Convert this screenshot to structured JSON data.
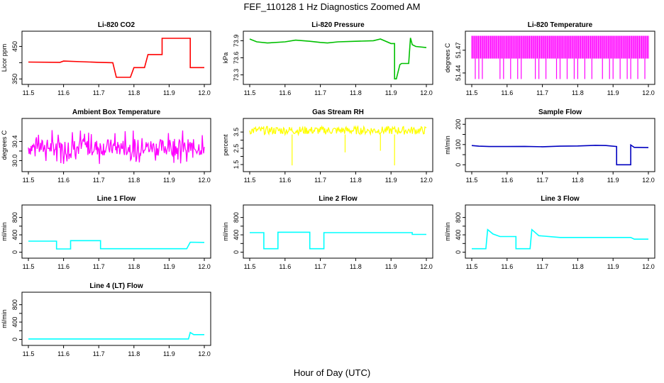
{
  "title": "FEF_110128  1 Hz Diagnostics Zoomed AM",
  "xlabel": "Hour of Day (UTC)",
  "chart_data": [
    {
      "type": "line",
      "title": "Li-820 CO2",
      "ylabel": "Licor ppm",
      "color": "#ff0000",
      "xlim": [
        11.5,
        12.0
      ],
      "ylim": [
        345,
        485
      ],
      "xticks": [
        "11.5",
        "11.6",
        "11.7",
        "11.8",
        "11.9",
        "12.0"
      ],
      "yticks": [
        {
          "v": 350,
          "label": "350"
        },
        {
          "v": 400,
          "label": ""
        },
        {
          "v": 450,
          "label": "450"
        }
      ],
      "x": [
        11.5,
        11.59,
        11.6,
        11.65,
        11.7,
        11.74,
        11.75,
        11.79,
        11.8,
        11.8,
        11.83,
        11.84,
        11.88,
        11.88,
        11.96,
        11.96,
        11.97,
        12.0
      ],
      "y": [
        402,
        401,
        405,
        403,
        401,
        400,
        355,
        355,
        385,
        385,
        385,
        425,
        425,
        475,
        475,
        385,
        385,
        385
      ]
    },
    {
      "type": "line",
      "title": "Li-820 Pressure",
      "ylabel": "kPa",
      "color": "#00c000",
      "xlim": [
        11.5,
        12.0
      ],
      "ylim": [
        73.2,
        74.0
      ],
      "xticks": [
        "11.5",
        "11.6",
        "11.7",
        "11.8",
        "11.9",
        "12.0"
      ],
      "yticks": [
        {
          "v": 73.3,
          "label": "73.3"
        },
        {
          "v": 73.6,
          "label": "73.6"
        },
        {
          "v": 73.9,
          "label": "73.9"
        }
      ],
      "x": [
        11.5,
        11.52,
        11.55,
        11.6,
        11.63,
        11.67,
        11.7,
        11.72,
        11.75,
        11.8,
        11.85,
        11.87,
        11.9,
        11.91,
        11.91,
        11.915,
        11.925,
        11.93,
        11.95,
        11.955,
        11.96,
        11.97,
        12.0
      ],
      "y": [
        73.93,
        73.88,
        73.86,
        73.88,
        73.91,
        73.89,
        73.87,
        73.86,
        73.88,
        73.89,
        73.9,
        73.93,
        73.85,
        73.85,
        73.23,
        73.23,
        73.48,
        73.5,
        73.5,
        73.95,
        73.83,
        73.8,
        73.78
      ]
    },
    {
      "type": "area",
      "title": "Li-820 Temperature",
      "ylabel": "degrees C",
      "color": "#ff00ff",
      "xlim": [
        11.5,
        12.0
      ],
      "ylim": [
        51.43,
        51.49
      ],
      "xticks": [
        "11.5",
        "11.6",
        "11.7",
        "11.8",
        "11.9",
        "12.0"
      ],
      "yticks": [
        {
          "v": 51.44,
          "label": "51.44"
        },
        {
          "v": 51.47,
          "label": "51.47"
        }
      ],
      "band": [
        51.459,
        51.489
      ],
      "dips": [
        11.51,
        11.52,
        11.53,
        11.58,
        11.59,
        11.61,
        11.63,
        11.64,
        11.68,
        11.69,
        11.71,
        11.74,
        11.75,
        11.77,
        11.79,
        11.8,
        11.82,
        11.84,
        11.87,
        11.89,
        11.9,
        11.92,
        11.94,
        11.95,
        11.97,
        11.99
      ],
      "dip_min": 51.432
    },
    {
      "type": "area",
      "title": "Ambient Box Temperature",
      "ylabel": "degrees C",
      "color": "#ff00ff",
      "xlim": [
        11.5,
        12.0
      ],
      "ylim": [
        29.85,
        30.8
      ],
      "xticks": [
        "11.5",
        "11.6",
        "11.7",
        "11.8",
        "11.9",
        "12.0"
      ],
      "yticks": [
        {
          "v": 30.0,
          "label": "30.0"
        },
        {
          "v": 30.2,
          "label": ""
        },
        {
          "v": 30.4,
          "label": "30.4"
        }
      ],
      "band": [
        30.1,
        30.45
      ],
      "spike_max": 30.65,
      "spike_min": 29.92
    },
    {
      "type": "line",
      "title": "Gas Stream RH",
      "ylabel": "percent",
      "color": "#ffff00",
      "xlim": [
        11.5,
        12.0
      ],
      "ylim": [
        1.3,
        4.1
      ],
      "xticks": [
        "11.5",
        "11.6",
        "11.7",
        "11.8",
        "11.9",
        "12.0"
      ],
      "yticks": [
        {
          "v": 1.5,
          "label": "1.5"
        },
        {
          "v": 2.0,
          "label": ""
        },
        {
          "v": 2.5,
          "label": "2.5"
        },
        {
          "v": 3.0,
          "label": ""
        },
        {
          "v": 3.5,
          "label": "3.5"
        }
      ],
      "band": [
        3.35,
        3.85
      ],
      "spikes": [
        {
          "x": 11.62,
          "y": 1.45
        },
        {
          "x": 11.77,
          "y": 2.25
        },
        {
          "x": 11.87,
          "y": 2.35
        },
        {
          "x": 11.91,
          "y": 1.45
        }
      ]
    },
    {
      "type": "line",
      "title": "Sample Flow",
      "ylabel": "ml/min",
      "color": "#0000c0",
      "xlim": [
        11.5,
        12.0
      ],
      "ylim": [
        -15,
        210
      ],
      "xticks": [
        "11.5",
        "11.6",
        "11.7",
        "11.8",
        "11.9",
        "12.0"
      ],
      "yticks": [
        {
          "v": 0,
          "label": "0"
        },
        {
          "v": 50,
          "label": ""
        },
        {
          "v": 100,
          "label": "100"
        },
        {
          "v": 150,
          "label": ""
        },
        {
          "v": 200,
          "label": "200"
        }
      ],
      "x": [
        11.5,
        11.52,
        11.55,
        11.6,
        11.65,
        11.7,
        11.75,
        11.8,
        11.85,
        11.88,
        11.91,
        11.91,
        11.95,
        11.95,
        11.955,
        11.96,
        11.97,
        12.0
      ],
      "y": [
        95,
        92,
        90,
        90,
        91,
        89,
        92,
        93,
        96,
        95,
        90,
        0,
        0,
        98,
        92,
        86,
        86,
        85
      ]
    },
    {
      "type": "line",
      "title": "Line 1 Flow",
      "ylabel": "ml/min",
      "color": "#00ffff",
      "xlim": [
        11.5,
        12.0
      ],
      "ylim": [
        -50,
        1000
      ],
      "xticks": [
        "11.5",
        "11.6",
        "11.7",
        "11.8",
        "11.9",
        "12.0"
      ],
      "yticks": [
        {
          "v": 0,
          "label": "0"
        },
        {
          "v": 200,
          "label": ""
        },
        {
          "v": 400,
          "label": "400"
        },
        {
          "v": 600,
          "label": ""
        },
        {
          "v": 800,
          "label": "800"
        }
      ],
      "x": [
        11.5,
        11.58,
        11.58,
        11.62,
        11.62,
        11.705,
        11.705,
        11.95,
        11.96,
        12.0
      ],
      "y": [
        255,
        255,
        75,
        75,
        265,
        265,
        80,
        80,
        230,
        225
      ]
    },
    {
      "type": "line",
      "title": "Line 2 Flow",
      "ylabel": "ml/min",
      "color": "#00ffff",
      "xlim": [
        11.5,
        12.0
      ],
      "ylim": [
        -50,
        1000
      ],
      "xticks": [
        "11.5",
        "11.6",
        "11.7",
        "11.8",
        "11.9",
        "12.0"
      ],
      "yticks": [
        {
          "v": 0,
          "label": "0"
        },
        {
          "v": 200,
          "label": ""
        },
        {
          "v": 400,
          "label": "400"
        },
        {
          "v": 600,
          "label": ""
        },
        {
          "v": 800,
          "label": "800"
        }
      ],
      "x": [
        11.5,
        11.54,
        11.54,
        11.58,
        11.58,
        11.67,
        11.67,
        11.71,
        11.71,
        11.96,
        11.96,
        12.0
      ],
      "y": [
        450,
        450,
        80,
        80,
        460,
        460,
        80,
        80,
        450,
        450,
        410,
        410
      ]
    },
    {
      "type": "line",
      "title": "Line 3 Flow",
      "ylabel": "ml/min",
      "color": "#00ffff",
      "xlim": [
        11.5,
        12.0
      ],
      "ylim": [
        -50,
        1000
      ],
      "xticks": [
        "11.5",
        "11.6",
        "11.7",
        "11.8",
        "11.9",
        "12.0"
      ],
      "yticks": [
        {
          "v": 0,
          "label": "0"
        },
        {
          "v": 200,
          "label": ""
        },
        {
          "v": 400,
          "label": "400"
        },
        {
          "v": 600,
          "label": ""
        },
        {
          "v": 800,
          "label": "800"
        }
      ],
      "x": [
        11.5,
        11.54,
        11.545,
        11.56,
        11.58,
        11.625,
        11.625,
        11.665,
        11.67,
        11.69,
        11.75,
        11.85,
        11.95,
        11.96,
        12.0
      ],
      "y": [
        80,
        80,
        520,
        420,
        360,
        360,
        80,
        80,
        520,
        380,
        340,
        340,
        340,
        300,
        300
      ]
    },
    {
      "type": "line",
      "title": "Line 4 (LT) Flow",
      "ylabel": "ml/min",
      "color": "#00ffff",
      "xlim": [
        11.5,
        12.0
      ],
      "ylim": [
        -50,
        1000
      ],
      "xticks": [
        "11.5",
        "11.6",
        "11.7",
        "11.8",
        "11.9",
        "12.0"
      ],
      "yticks": [
        {
          "v": 0,
          "label": "0"
        },
        {
          "v": 200,
          "label": ""
        },
        {
          "v": 400,
          "label": "400"
        },
        {
          "v": 600,
          "label": ""
        },
        {
          "v": 800,
          "label": "800"
        }
      ],
      "x": [
        11.5,
        11.955,
        11.96,
        11.97,
        12.0
      ],
      "y": [
        10,
        10,
        160,
        110,
        110
      ]
    }
  ]
}
